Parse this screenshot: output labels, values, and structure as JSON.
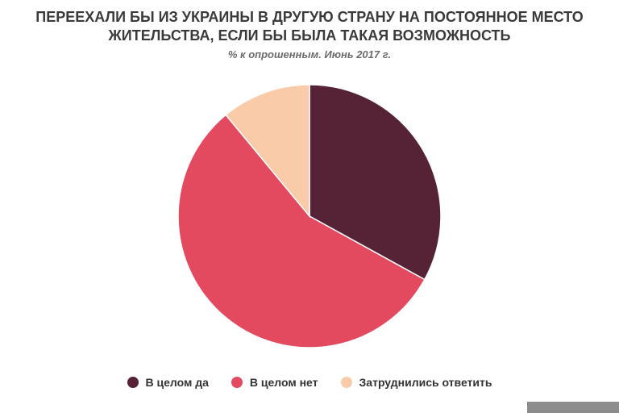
{
  "chart_data": {
    "type": "pie",
    "title_lines": [
      "ПЕРЕЕХАЛИ БЫ ИЗ УКРАИНЫ В ДРУГУЮ СТРАНУ НА ПОСТОЯННОЕ МЕСТО",
      "ЖИТЕЛЬСТВА, ЕСЛИ БЫ БЫЛА ТАКАЯ ВОЗМОЖНОСТЬ"
    ],
    "subtitle": "% к опрошенным. Июнь 2017 г.",
    "legend_position": "bottom",
    "slices": [
      {
        "label": "В целом да",
        "value": 33,
        "color": "#562236"
      },
      {
        "label": "В целом нет",
        "value": 56,
        "color": "#e34a5f"
      },
      {
        "label": "Затруднились ответить",
        "value": 11,
        "color": "#f9cba8"
      }
    ]
  }
}
